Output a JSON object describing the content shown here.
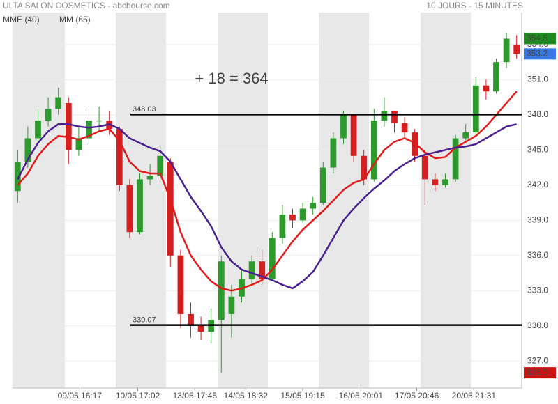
{
  "chart_data": {
    "type": "candlestick",
    "title": "ULTA SALON COSMETICS - abcbourse.com",
    "subtitle": "10 JOURS - 15 MINUTES",
    "annotation": "+ 18 = 364",
    "annotation_color": "#1a8a1a",
    "up_color": "#2e9a2e",
    "down_color": "#d42020",
    "xlim": [
      -0.5,
      49.5
    ],
    "xticks": [
      {
        "value": 6.1,
        "label": "09/05 16:17"
      },
      {
        "value": 11.8,
        "label": "10/05 17:02"
      },
      {
        "value": 17.4,
        "label": "13/05 17:45"
      },
      {
        "value": 22.4,
        "label": "14/05 18:32"
      },
      {
        "value": 28.0,
        "label": "15/05 19:15"
      },
      {
        "value": 33.7,
        "label": "16/05 20:01"
      },
      {
        "value": 39.2,
        "label": "17/05 20:46"
      },
      {
        "value": 44.8,
        "label": "20/05 21:31"
      }
    ],
    "ylim": [
      324.7,
      357.2
    ],
    "yticks": [
      {
        "value": 327,
        "label": "327.0"
      },
      {
        "value": 330,
        "label": "330.0"
      },
      {
        "value": 333,
        "label": "333.0"
      },
      {
        "value": 336,
        "label": "336.0"
      },
      {
        "value": 339,
        "label": "339.0"
      },
      {
        "value": 342,
        "label": "342.0"
      },
      {
        "value": 345,
        "label": "345.0"
      },
      {
        "value": 348,
        "label": "348.0"
      },
      {
        "value": 351,
        "label": "351.0"
      },
      {
        "value": 354,
        "label": "354.0"
      }
    ],
    "grid": true,
    "candles": {
      "open": [
        341.5,
        344,
        346,
        347.5,
        348.5,
        349,
        345,
        346,
        347.5,
        347.5,
        346.8,
        342,
        338,
        342.5,
        342.8,
        344,
        336,
        331,
        330,
        329.5,
        330.5,
        331,
        332.5,
        334,
        335.5,
        334,
        337.5,
        339.5,
        339,
        340,
        340.5,
        343.5,
        346,
        348,
        344.5,
        342.5,
        347.5,
        348.3,
        347.3,
        346.5,
        344.5,
        342.5,
        342,
        342.5,
        346,
        346.5,
        350.5,
        350,
        352.5,
        354
      ],
      "high": [
        345,
        347,
        348.5,
        349.5,
        350.3,
        349.5,
        347,
        348.5,
        348.7,
        348.3,
        347,
        342.5,
        343,
        343.8,
        345.3,
        344.3,
        336.5,
        332,
        330.8,
        331.5,
        336,
        333.5,
        334.8,
        336,
        336.5,
        338,
        340.3,
        340,
        340.5,
        341,
        344,
        346.5,
        348.3,
        348,
        345,
        348.5,
        349.5,
        348.3,
        347.8,
        346.8,
        345,
        343,
        343,
        346.3,
        347.2,
        351.2,
        351,
        352.8,
        355,
        354.8
      ],
      "low": [
        340.5,
        343.5,
        345.5,
        347,
        348,
        343.8,
        344.5,
        345.5,
        346.5,
        346.3,
        341.5,
        337.5,
        337.8,
        342,
        342.5,
        335,
        329.8,
        329,
        328.8,
        328.5,
        326,
        329,
        332,
        333.5,
        333.5,
        333.8,
        337,
        338.3,
        338.8,
        339.5,
        340.3,
        343,
        345.5,
        344,
        342,
        342.3,
        347,
        346.5,
        346,
        344,
        340.3,
        341.5,
        341.8,
        342.3,
        345.8,
        346.3,
        349.3,
        349.8,
        352,
        352.8
      ],
      "close": [
        344,
        346,
        347.5,
        348.5,
        349.5,
        345,
        346,
        347.5,
        347.5,
        346.8,
        342,
        338,
        342.5,
        342.8,
        344.5,
        336,
        331,
        330,
        329.5,
        330.5,
        335.5,
        332.5,
        334,
        335.5,
        334,
        337.5,
        339.5,
        339,
        340,
        340.5,
        343.5,
        346,
        348,
        344.5,
        342.5,
        347.5,
        348.3,
        347.3,
        346.5,
        344.5,
        342.5,
        342,
        342.5,
        346,
        346.5,
        350.5,
        350,
        352.5,
        354.5,
        353.2
      ]
    },
    "series": [
      {
        "name": "MME (40)",
        "color": "#e41a1a",
        "values": [
          342,
          343,
          344.5,
          345.5,
          346.2,
          346.1,
          345.9,
          346.2,
          346.6,
          346.8,
          345.8,
          344,
          343.2,
          343,
          343,
          340.8,
          338,
          336,
          334.8,
          333.8,
          333.2,
          333,
          333.2,
          333.5,
          333.9,
          334.8,
          336,
          337.2,
          338.2,
          339,
          339.8,
          340.7,
          341.6,
          342.2,
          342.5,
          343.8,
          345,
          345.7,
          346,
          345.6,
          344.8,
          344.3,
          344.4,
          345.2,
          345.7,
          346.2,
          347,
          348,
          349,
          350
        ]
      },
      {
        "name": "MM (65)",
        "color": "#4b1f8f",
        "values": [
          342.5,
          344.2,
          345.6,
          346.6,
          347.2,
          347.2,
          347,
          346.9,
          347,
          347.2,
          346.8,
          346,
          345.6,
          345.2,
          344.9,
          344,
          342.5,
          341,
          339.8,
          338.5,
          336.7,
          335.5,
          334.8,
          334.5,
          334.2,
          333.9,
          333.5,
          333.2,
          333.8,
          334.6,
          336,
          337.5,
          339,
          340,
          340.9,
          341.7,
          342.4,
          343.2,
          343.8,
          344.3,
          344.6,
          344.8,
          345,
          345.2,
          345.3,
          345.5,
          346,
          346.5,
          347,
          347.2
        ]
      }
    ],
    "levels": [
      {
        "value": 348.03,
        "label": "348.03"
      },
      {
        "value": 330.07,
        "label": "330.07"
      }
    ],
    "price_markers": [
      {
        "value": 354.5,
        "label": "354.5",
        "color": "#1f8a1f"
      },
      {
        "value": 353.2,
        "label": "353.2",
        "color": "#3a78e0"
      },
      {
        "value": 326,
        "label": "326.0",
        "color": "#c81414"
      }
    ]
  }
}
